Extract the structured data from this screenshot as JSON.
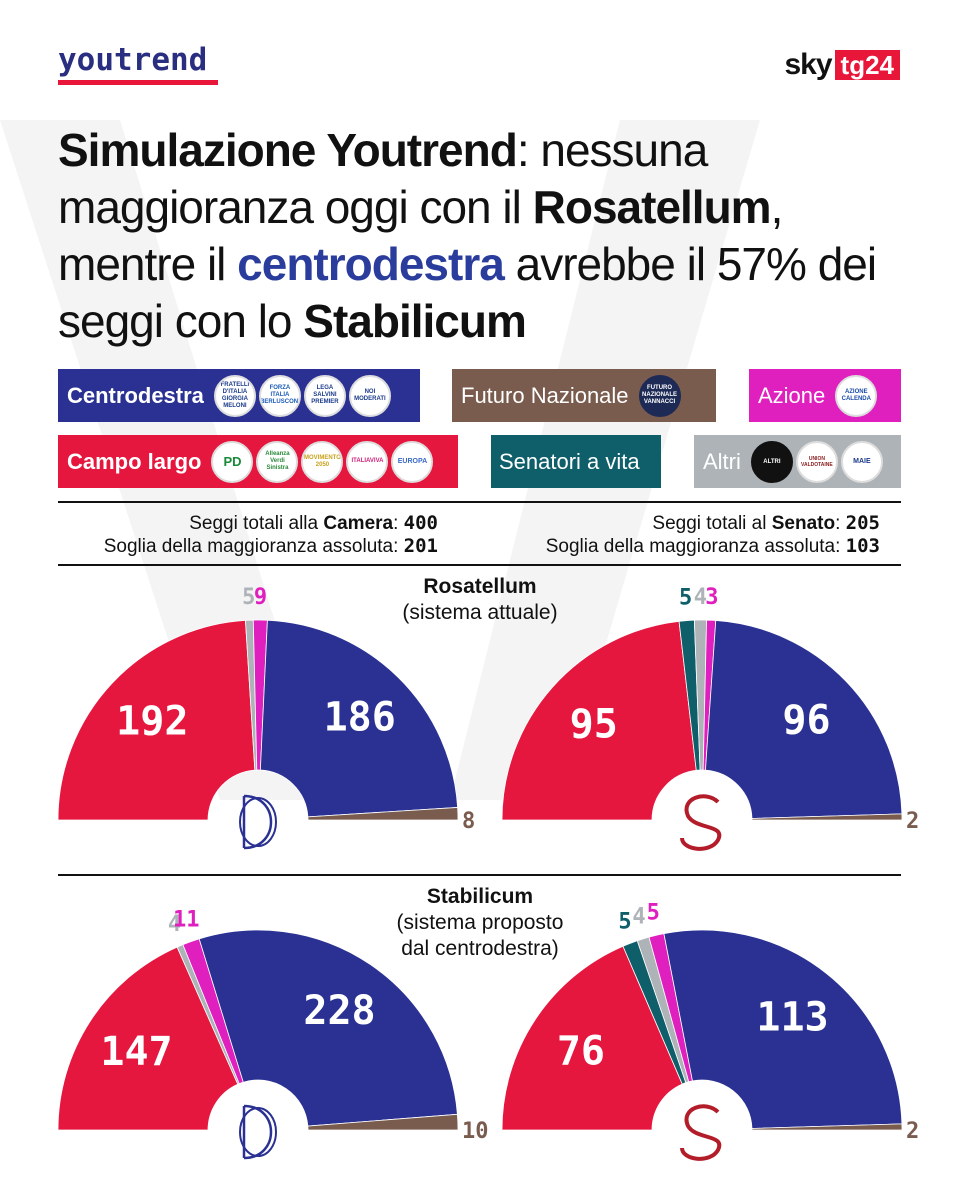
{
  "brand": {
    "left_logo": "youtrend",
    "right_sky": "sky",
    "right_tg": "tg24"
  },
  "headline": {
    "p1": "Simulazione Youtrend",
    "p2": ": nessuna maggioranza oggi con il ",
    "p3": "Rosatellum",
    "p4": ", mentre il ",
    "p5": "centrodestra",
    "p6": " avrebbe il 57% dei seggi con lo ",
    "p7": "Stabilicum"
  },
  "colors": {
    "centrodestra": "#2a3192",
    "campo_largo": "#e5173f",
    "futuro_nazionale": "#7a5c4f",
    "azione": "#e01fbf",
    "senatori_a_vita": "#0f5f6b",
    "altri": "#aeb3b8"
  },
  "legend": {
    "centrodestra": {
      "label": "Centrodestra",
      "logos": [
        "FRATELLI D'ITALIA GIORGIA MELONI",
        "FORZA ITALIA BERLUSCONI",
        "LEGA SALVINI PREMIER",
        "NOI MODERATI"
      ]
    },
    "futuro_nazionale": {
      "label": "Futuro Nazionale",
      "logos": [
        "FUTURO NAZIONALE VANNACCI"
      ]
    },
    "azione": {
      "label": "Azione",
      "logos": [
        "AZIONE CALENDA"
      ]
    },
    "campo_largo": {
      "label": "Campo largo",
      "logos": [
        "PD",
        "Alleanza Verdi Sinistra",
        "MOVIMENTO 2050",
        "ITALIAVIVA",
        "EUROPA"
      ]
    },
    "senatori_a_vita": {
      "label": "Senatori a vita",
      "logos": []
    },
    "altri": {
      "label": "Altri",
      "logos": [
        "ALTRI",
        "UNION VALDOTAINE",
        "MAIE"
      ]
    }
  },
  "camera_info": {
    "line1_prefix": "Seggi totali alla ",
    "line1_bold": "Camera",
    "line1_sep": ": ",
    "line1_value": "400",
    "line2_prefix": "Soglia della maggioranza assoluta: ",
    "line2_value": "201"
  },
  "senato_info": {
    "line1_prefix": "Seggi totali al ",
    "line1_bold": "Senato",
    "line1_sep": ": ",
    "line1_value": "205",
    "line2_prefix": "Soglia della maggioranza assoluta: ",
    "line2_value": "103"
  },
  "section_rosatellum": {
    "title": "Rosatellum",
    "subtitle": "(sistema attuale)"
  },
  "section_stabilicum": {
    "title": "Stabilicum",
    "subtitle1": "(sistema proposto",
    "subtitle2": "dal centrodestra)"
  },
  "chart_data": [
    {
      "type": "pie",
      "subtype": "hemicycle",
      "title": "Rosatellum",
      "chamber": "Camera",
      "total": 400,
      "majority": 201,
      "categories": [
        "Campo largo",
        "Altri",
        "Azione",
        "Centrodestra",
        "Futuro Nazionale"
      ],
      "values": [
        192,
        5,
        9,
        186,
        8
      ],
      "colors": [
        "#e5173f",
        "#aeb3b8",
        "#e01fbf",
        "#2a3192",
        "#7a5c4f"
      ]
    },
    {
      "type": "pie",
      "subtype": "hemicycle",
      "title": "Rosatellum",
      "chamber": "Senato",
      "total": 205,
      "majority": 103,
      "categories": [
        "Campo largo",
        "Senatori a vita",
        "Altri",
        "Azione",
        "Centrodestra",
        "Futuro Nazionale"
      ],
      "values": [
        95,
        5,
        4,
        3,
        96,
        2
      ],
      "colors": [
        "#e5173f",
        "#0f5f6b",
        "#aeb3b8",
        "#e01fbf",
        "#2a3192",
        "#7a5c4f"
      ]
    },
    {
      "type": "pie",
      "subtype": "hemicycle",
      "title": "Stabilicum",
      "chamber": "Camera",
      "total": 400,
      "majority": 201,
      "categories": [
        "Campo largo",
        "Altri",
        "Azione",
        "Centrodestra",
        "Futuro Nazionale"
      ],
      "values": [
        147,
        4,
        11,
        228,
        10
      ],
      "colors": [
        "#e5173f",
        "#aeb3b8",
        "#e01fbf",
        "#2a3192",
        "#7a5c4f"
      ]
    },
    {
      "type": "pie",
      "subtype": "hemicycle",
      "title": "Stabilicum",
      "chamber": "Senato",
      "total": 205,
      "majority": 103,
      "categories": [
        "Campo largo",
        "Senatori a vita",
        "Altri",
        "Azione",
        "Centrodestra",
        "Futuro Nazionale"
      ],
      "values": [
        76,
        5,
        4,
        5,
        113,
        2
      ],
      "colors": [
        "#e5173f",
        "#0f5f6b",
        "#aeb3b8",
        "#e01fbf",
        "#2a3192",
        "#7a5c4f"
      ]
    }
  ]
}
